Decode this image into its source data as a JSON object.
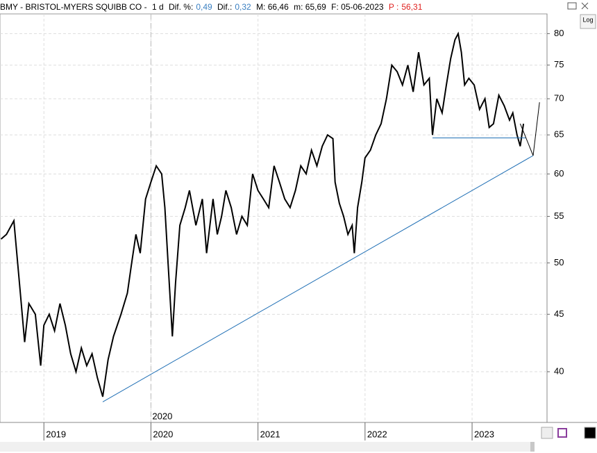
{
  "header": {
    "symbol": "BMY - BRISTOL-MYERS SQUIBB CO -",
    "period": "1 d",
    "dif_pct_label": "Dif. %:",
    "dif_pct": "0,49",
    "dif_label": "Dif.:",
    "dif": "0,32",
    "max": "M: 66,46",
    "min": "m: 65,69",
    "date": "F: 05-06-2023",
    "p_label": "P :",
    "p": "56,31",
    "log_button": "Log"
  },
  "chart_data": {
    "type": "line",
    "log_scale": true,
    "grid": true,
    "color": "#000000",
    "x": [
      2018.6,
      2018.65,
      2018.72,
      2018.78,
      2018.82,
      2018.86,
      2018.92,
      2018.97,
      2019.0,
      2019.05,
      2019.1,
      2019.15,
      2019.2,
      2019.25,
      2019.3,
      2019.35,
      2019.4,
      2019.45,
      2019.5,
      2019.55,
      2019.6,
      2019.65,
      2019.72,
      2019.78,
      2019.82,
      2019.86,
      2019.9,
      2019.95,
      2020.0,
      2020.05,
      2020.1,
      2020.13,
      2020.16,
      2020.2,
      2020.23,
      2020.27,
      2020.32,
      2020.36,
      2020.42,
      2020.48,
      2020.52,
      2020.58,
      2020.62,
      2020.66,
      2020.7,
      2020.75,
      2020.8,
      2020.85,
      2020.9,
      2020.95,
      2021.0,
      2021.05,
      2021.1,
      2021.15,
      2021.2,
      2021.25,
      2021.3,
      2021.35,
      2021.4,
      2021.45,
      2021.5,
      2021.55,
      2021.6,
      2021.65,
      2021.7,
      2021.72,
      2021.76,
      2021.8,
      2021.84,
      2021.88,
      2021.9,
      2021.93,
      2021.97,
      2022.0,
      2022.05,
      2022.1,
      2022.15,
      2022.2,
      2022.25,
      2022.3,
      2022.35,
      2022.4,
      2022.45,
      2022.5,
      2022.55,
      2022.6,
      2022.63,
      2022.67,
      2022.72,
      2022.76,
      2022.8,
      2022.84,
      2022.87,
      2022.9,
      2022.93,
      2022.97,
      2023.02,
      2023.07,
      2023.12,
      2023.16,
      2023.2,
      2023.25,
      2023.3,
      2023.35,
      2023.38,
      2023.42,
      2023.45,
      2023.48
    ],
    "values": [
      52.5,
      53,
      54.5,
      47,
      42.5,
      46,
      45,
      40.5,
      44,
      45,
      43.5,
      46,
      44,
      41.5,
      40,
      42,
      40.5,
      41.5,
      39.5,
      38,
      41,
      43,
      45,
      47,
      50,
      53,
      51,
      57,
      59,
      61,
      60,
      56,
      50,
      43,
      48,
      54,
      56,
      58,
      54,
      57,
      51,
      57,
      53,
      55,
      58,
      56,
      53,
      55,
      54,
      60,
      58,
      57,
      56,
      61,
      59,
      57,
      56,
      58,
      61,
      60,
      63,
      61,
      63.5,
      65,
      64.5,
      59,
      56.5,
      55,
      53,
      54,
      51,
      56,
      59,
      62,
      63,
      65,
      66.5,
      70,
      75,
      74,
      72,
      75,
      71,
      77,
      72,
      73,
      65,
      70,
      68,
      72,
      76,
      79,
      80,
      77,
      72,
      73,
      72,
      68.5,
      70,
      66,
      66.5,
      70.5,
      69,
      67,
      68,
      65,
      63.5,
      66.5
    ],
    "xlim": [
      2018.59,
      2023.7
    ],
    "ylim": [
      36.05,
      83.3
    ],
    "xticks": [
      2019,
      2020,
      2021,
      2022,
      2023
    ],
    "yticks": [
      40,
      45,
      50,
      55,
      60,
      65,
      70,
      75,
      80
    ],
    "vline": {
      "x": 2020
    },
    "lines": [
      {
        "color": "#1f6fb5",
        "x": [
          2019.55,
          2023.57
        ],
        "y": [
          37.6,
          62.3
        ]
      },
      {
        "color": "#1f6fb5",
        "x": [
          2022.63,
          2023.5
        ],
        "y": [
          64.6,
          64.6
        ]
      },
      {
        "color": "#000000",
        "x": [
          2023.45,
          2023.57,
          2023.63
        ],
        "y": [
          66.5,
          62.3,
          69.5
        ]
      }
    ]
  }
}
